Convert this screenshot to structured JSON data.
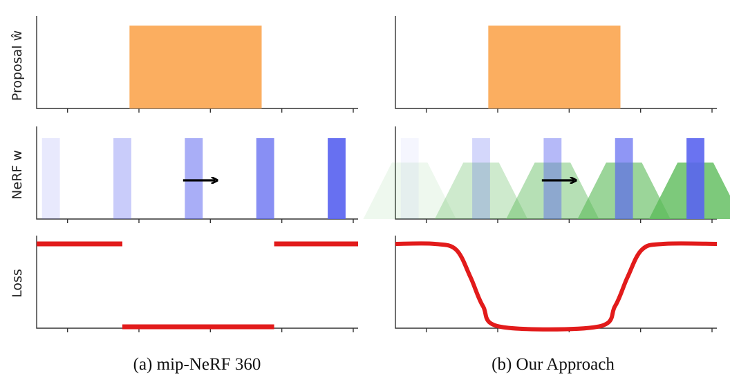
{
  "figure": {
    "row_labels": {
      "proposal": "Proposal ŵ",
      "nerf": "NeRF w",
      "loss": "Loss"
    },
    "captions": {
      "left": "(a) mip-NeRF 360",
      "right": "(b) Our Approach"
    },
    "arrow_glyph": "→",
    "colors": {
      "proposal_fill": "#FBAE60",
      "nerf_bar": "#5A64F0",
      "blurred_nerf": "#5DBB5A",
      "loss_line": "#E21B1B",
      "axis": "#333333"
    }
  },
  "chart_data": [
    {
      "type": "bar",
      "panel": "a-top",
      "xlim": [
        0,
        9
      ],
      "ylim": [
        0,
        1
      ],
      "bars": [
        {
          "x0": 2.6,
          "x1": 6.3,
          "y": 1.0
        }
      ]
    },
    {
      "type": "bar",
      "panel": "b-top",
      "xlim": [
        0,
        9
      ],
      "ylim": [
        0,
        1
      ],
      "bars": [
        {
          "x0": 2.6,
          "x1": 6.3,
          "y": 1.0
        }
      ]
    },
    {
      "type": "bar",
      "panel": "a-middle",
      "xlim": [
        0,
        9
      ],
      "ylim": [
        0,
        1
      ],
      "bars": [
        {
          "x": 0.4,
          "y": 1.0,
          "opacity": 0.14
        },
        {
          "x": 2.4,
          "y": 1.0,
          "opacity": 0.33
        },
        {
          "x": 4.4,
          "y": 1.0,
          "opacity": 0.52
        },
        {
          "x": 6.4,
          "y": 1.0,
          "opacity": 0.72
        },
        {
          "x": 8.4,
          "y": 1.0,
          "opacity": 0.92
        }
      ],
      "bar_width": 0.5,
      "arrow": {
        "x0": 4.1,
        "x1": 5.0,
        "y": 0.5
      }
    },
    {
      "type": "bar",
      "panel": "b-middle",
      "xlim": [
        0,
        9
      ],
      "ylim": [
        0,
        1
      ],
      "bars": [
        {
          "x": 0.4,
          "y": 1.0,
          "opacity": 0.06
        },
        {
          "x": 2.4,
          "y": 1.0,
          "opacity": 0.26
        },
        {
          "x": 4.4,
          "y": 1.0,
          "opacity": 0.45
        },
        {
          "x": 6.4,
          "y": 1.0,
          "opacity": 0.68
        },
        {
          "x": 8.4,
          "y": 1.0,
          "opacity": 0.9
        }
      ],
      "bar_width": 0.5,
      "blurred": [
        {
          "x": 0.4,
          "top_half": 0.5,
          "bottom_half": 1.3,
          "y": 0.68,
          "opacity": 0.1
        },
        {
          "x": 2.4,
          "top_half": 0.5,
          "bottom_half": 1.3,
          "y": 0.68,
          "opacity": 0.3
        },
        {
          "x": 4.4,
          "top_half": 0.5,
          "bottom_half": 1.3,
          "y": 0.68,
          "opacity": 0.45
        },
        {
          "x": 6.4,
          "top_half": 0.5,
          "bottom_half": 1.3,
          "y": 0.68,
          "opacity": 0.62
        },
        {
          "x": 8.4,
          "top_half": 0.5,
          "bottom_half": 1.3,
          "y": 0.68,
          "opacity": 0.8
        }
      ],
      "arrow": {
        "x0": 4.1,
        "x1": 5.0,
        "y": 0.5
      }
    },
    {
      "type": "line",
      "panel": "a-bottom",
      "xlim": [
        0,
        9
      ],
      "ylim": [
        0,
        1
      ],
      "segments": [
        {
          "x0": 0.0,
          "x1": 2.4,
          "y": 1.0
        },
        {
          "x0": 2.4,
          "x1": 6.65,
          "y": 0.0
        },
        {
          "x0": 6.65,
          "x1": 9.0,
          "y": 1.0
        }
      ]
    },
    {
      "type": "line",
      "panel": "b-bottom",
      "xlim": [
        0,
        9
      ],
      "ylim": [
        0,
        1
      ],
      "points": [
        [
          0.0,
          1.0
        ],
        [
          1.1,
          1.0
        ],
        [
          1.7,
          0.93
        ],
        [
          2.1,
          0.6
        ],
        [
          2.45,
          0.25
        ],
        [
          2.95,
          0.0
        ],
        [
          5.65,
          0.0
        ],
        [
          6.15,
          0.25
        ],
        [
          6.5,
          0.6
        ],
        [
          6.9,
          0.93
        ],
        [
          7.5,
          1.0
        ],
        [
          9.0,
          1.0
        ]
      ]
    }
  ]
}
